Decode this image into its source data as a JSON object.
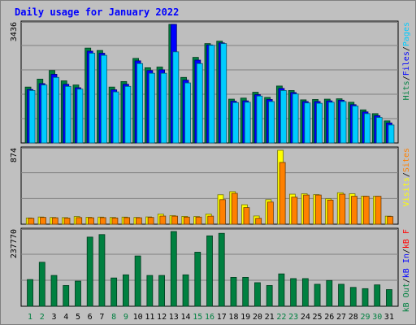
{
  "chart_data": {
    "type": "bar",
    "title": "Daily usage for January 2022",
    "days": [
      "1",
      "2",
      "3",
      "4",
      "5",
      "6",
      "7",
      "8",
      "9",
      "10",
      "11",
      "12",
      "13",
      "14",
      "15",
      "16",
      "17",
      "18",
      "19",
      "20",
      "21",
      "22",
      "23",
      "24",
      "25",
      "26",
      "27",
      "28",
      "29",
      "30",
      "31"
    ],
    "weekend_days": [
      "1",
      "2",
      "8",
      "9",
      "15",
      "16",
      "22",
      "23",
      "29",
      "30"
    ],
    "panels": [
      {
        "id": "hits",
        "max_label": "3436",
        "ymax": 3436,
        "series": [
          {
            "name": "Hits",
            "values": [
              1620,
              1850,
              2100,
              1800,
              1680,
              2750,
              2680,
              1620,
              1780,
              2450,
              2180,
              2200,
              3436,
              1900,
              2480,
              2880,
              2950,
              1270,
              1300,
              1470,
              1320,
              1650,
              1520,
              1250,
              1260,
              1270,
              1280,
              1180,
              960,
              850,
              640
            ]
          },
          {
            "name": "Files",
            "values": [
              1550,
              1720,
              1990,
              1700,
              1600,
              2660,
              2600,
              1540,
              1700,
              2380,
              2100,
              2120,
              3436,
              1820,
              2400,
              2840,
              2900,
              1210,
              1220,
              1400,
              1260,
              1580,
              1460,
              1200,
              1200,
              1220,
              1240,
              1110,
              900,
              790,
              580
            ]
          },
          {
            "name": "Pages",
            "values": [
              1520,
              1680,
              1900,
              1640,
              1560,
              2600,
              2540,
              1480,
              1640,
              2300,
              2020,
              2020,
              2640,
              1740,
              2300,
              2830,
              2880,
              1170,
              1180,
              1360,
              1200,
              1520,
              1420,
              1160,
              1150,
              1180,
              1200,
              1070,
              850,
              740,
              520
            ]
          }
        ],
        "axis_words": [
          "Pages",
          "Files",
          "Hits"
        ],
        "colors": [
          "#00ccff",
          "#0000ff",
          "#008040"
        ]
      },
      {
        "id": "visits",
        "max_label": "874",
        "ymax": 874,
        "series": [
          {
            "name": "Visits",
            "values": [
              74,
              85,
              80,
              78,
              90,
              82,
              84,
              80,
              84,
              80,
              86,
              120,
              102,
              92,
              90,
              120,
              348,
              385,
              230,
              97,
              290,
              874,
              355,
              360,
              350,
              300,
              372,
              360,
              332,
              330,
              95
            ]
          },
          {
            "name": "Sites",
            "values": [
              70,
              80,
              76,
              72,
              78,
              76,
              78,
              74,
              78,
              76,
              80,
              96,
              95,
              84,
              84,
              95,
              290,
              365,
              196,
              70,
              262,
              730,
              320,
              345,
              345,
              285,
              355,
              330,
              330,
              330,
              90
            ]
          }
        ],
        "axis_words": [
          "Sites",
          "Visits"
        ],
        "colors": [
          "#ff8000",
          "#ffff00"
        ]
      },
      {
        "id": "kbytes",
        "max_label": "237770",
        "ymax": 237770,
        "series": [
          {
            "name": "kB F",
            "values": [
              85000,
              140000,
              98000,
              66000,
              80000,
              220000,
              228000,
              90000,
              100000,
              160000,
              98000,
              98000,
              237770,
              100000,
              172000,
              224000,
              232000,
              92000,
              92000,
              75000,
              66000,
              103000,
              88000,
              88000,
              70000,
              82000,
              70000,
              60000,
              56000,
              68000,
              53000
            ]
          }
        ],
        "axis_words": [
          "kB F",
          "kB In",
          "kB Out"
        ],
        "colors": [
          "#ff0000",
          "#0000ff",
          "#008040"
        ]
      }
    ]
  }
}
